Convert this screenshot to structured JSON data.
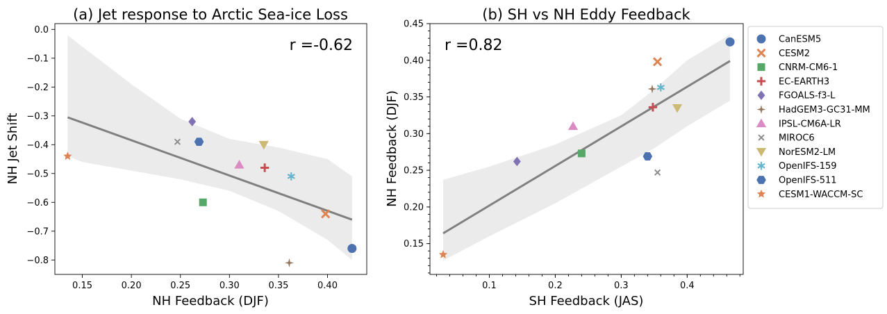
{
  "chart_data": [
    {
      "type": "scatter",
      "title": "(a) Jet response to Arctic Sea-ice Loss",
      "xlabel": "NH Feedback (DJF)",
      "ylabel": "NH Jet Shift",
      "annotation": "r =-0.62",
      "xlim": [
        0.122,
        0.44
      ],
      "ylim": [
        -0.85,
        0.02
      ],
      "xticks": [
        0.15,
        0.2,
        0.25,
        0.3,
        0.35,
        0.4
      ],
      "xtick_labels": [
        "0.15",
        "0.20",
        "0.25",
        "0.30",
        "0.35",
        "0.40"
      ],
      "yticks": [
        0.0,
        -0.1,
        -0.2,
        -0.3,
        -0.4,
        -0.5,
        -0.6,
        -0.7,
        -0.8
      ],
      "ytick_labels": [
        "0.0",
        "−0.1",
        "−0.2",
        "−0.3",
        "−0.4",
        "−0.5",
        "−0.6",
        "−0.7",
        "−0.8"
      ],
      "grid": false,
      "fit_line": {
        "x": [
          0.135,
          0.425
        ],
        "y": [
          -0.305,
          -0.66
        ]
      },
      "ci_band": {
        "x": [
          0.135,
          0.15,
          0.2,
          0.25,
          0.3,
          0.35,
          0.4,
          0.425
        ],
        "upper": [
          -0.02,
          -0.06,
          -0.19,
          -0.31,
          -0.38,
          -0.41,
          -0.45,
          -0.51
        ],
        "lower": [
          -0.44,
          -0.46,
          -0.49,
          -0.52,
          -0.56,
          -0.63,
          -0.73,
          -0.8
        ]
      },
      "points": [
        {
          "model": "CanESM5",
          "x": 0.425,
          "y": -0.76
        },
        {
          "model": "CESM2",
          "x": 0.398,
          "y": -0.64
        },
        {
          "model": "CNRM-CM6-1",
          "x": 0.273,
          "y": -0.6
        },
        {
          "model": "EC-EARTH3",
          "x": 0.336,
          "y": -0.48
        },
        {
          "model": "FGOALS-f3-L",
          "x": 0.262,
          "y": -0.32
        },
        {
          "model": "HadGEM3-GC31-MM",
          "x": 0.361,
          "y": -0.81
        },
        {
          "model": "IPSL-CM6A-LR",
          "x": 0.31,
          "y": -0.47
        },
        {
          "model": "MIROC6",
          "x": 0.247,
          "y": -0.39
        },
        {
          "model": "NorESM2-LM",
          "x": 0.335,
          "y": -0.4
        },
        {
          "model": "OpenIFS-159",
          "x": 0.363,
          "y": -0.51
        },
        {
          "model": "OpenIFS-511",
          "x": 0.269,
          "y": -0.39
        },
        {
          "model": "CESM1-WACCM-SC",
          "x": 0.135,
          "y": -0.44
        }
      ]
    },
    {
      "type": "scatter",
      "title": "(b) SH vs NH Eddy Feedback",
      "xlabel": "SH Feedback (JAS)",
      "ylabel": "NH Feedback (DJF)",
      "annotation": "r =0.82",
      "xlim": [
        0.01,
        0.485
      ],
      "ylim": [
        0.108,
        0.45
      ],
      "xticks": [
        0.1,
        0.2,
        0.3,
        0.4
      ],
      "xtick_labels": [
        "0.1",
        "0.2",
        "0.3",
        "0.4"
      ],
      "yticks": [
        0.15,
        0.2,
        0.25,
        0.3,
        0.35,
        0.4,
        0.45
      ],
      "ytick_labels": [
        "0.15",
        "0.20",
        "0.25",
        "0.30",
        "0.35",
        "0.40",
        "0.45"
      ],
      "grid": false,
      "fit_line": {
        "x": [
          0.03,
          0.465
        ],
        "y": [
          0.164,
          0.399
        ]
      },
      "ci_band": {
        "x": [
          0.03,
          0.1,
          0.2,
          0.3,
          0.35,
          0.4,
          0.465
        ],
        "upper": [
          0.237,
          0.255,
          0.285,
          0.325,
          0.36,
          0.4,
          0.435
        ],
        "lower": [
          0.127,
          0.16,
          0.205,
          0.255,
          0.28,
          0.31,
          0.345
        ]
      },
      "points": [
        {
          "model": "CanESM5",
          "x": 0.465,
          "y": 0.425
        },
        {
          "model": "CESM2",
          "x": 0.355,
          "y": 0.398
        },
        {
          "model": "CNRM-CM6-1",
          "x": 0.24,
          "y": 0.273
        },
        {
          "model": "EC-EARTH3",
          "x": 0.348,
          "y": 0.336
        },
        {
          "model": "FGOALS-f3-L",
          "x": 0.142,
          "y": 0.262
        },
        {
          "model": "HadGEM3-GC31-MM",
          "x": 0.347,
          "y": 0.361
        },
        {
          "model": "IPSL-CM6A-LR",
          "x": 0.227,
          "y": 0.31
        },
        {
          "model": "MIROC6",
          "x": 0.355,
          "y": 0.247
        },
        {
          "model": "NorESM2-LM",
          "x": 0.385,
          "y": 0.335
        },
        {
          "model": "OpenIFS-159",
          "x": 0.36,
          "y": 0.363
        },
        {
          "model": "OpenIFS-511",
          "x": 0.34,
          "y": 0.269
        },
        {
          "model": "CESM1-WACCM-SC",
          "x": 0.03,
          "y": 0.135
        }
      ]
    }
  ],
  "legend": {
    "placement": "right",
    "entries": [
      {
        "model": "CanESM5",
        "marker": "circle",
        "color": "#4c72b0"
      },
      {
        "model": "CESM2",
        "marker": "x",
        "color": "#dd8452"
      },
      {
        "model": "CNRM-CM6-1",
        "marker": "square",
        "color": "#55a868"
      },
      {
        "model": "EC-EARTH3",
        "marker": "plus",
        "color": "#c44e52"
      },
      {
        "model": "FGOALS-f3-L",
        "marker": "diamond",
        "color": "#8172b3"
      },
      {
        "model": "HadGEM3-GC31-MM",
        "marker": "star4",
        "color": "#937860"
      },
      {
        "model": "IPSL-CM6A-LR",
        "marker": "triangle-up",
        "color": "#da8bc3"
      },
      {
        "model": "MIROC6",
        "marker": "x-thin",
        "color": "#8c8c8c"
      },
      {
        "model": "NorESM2-LM",
        "marker": "triangle-down",
        "color": "#ccb974"
      },
      {
        "model": "OpenIFS-159",
        "marker": "asterisk",
        "color": "#64b5cd"
      },
      {
        "model": "OpenIFS-511",
        "marker": "hexagon",
        "color": "#4c72b0"
      },
      {
        "model": "CESM1-WACCM-SC",
        "marker": "star5",
        "color": "#dd8452"
      }
    ]
  }
}
